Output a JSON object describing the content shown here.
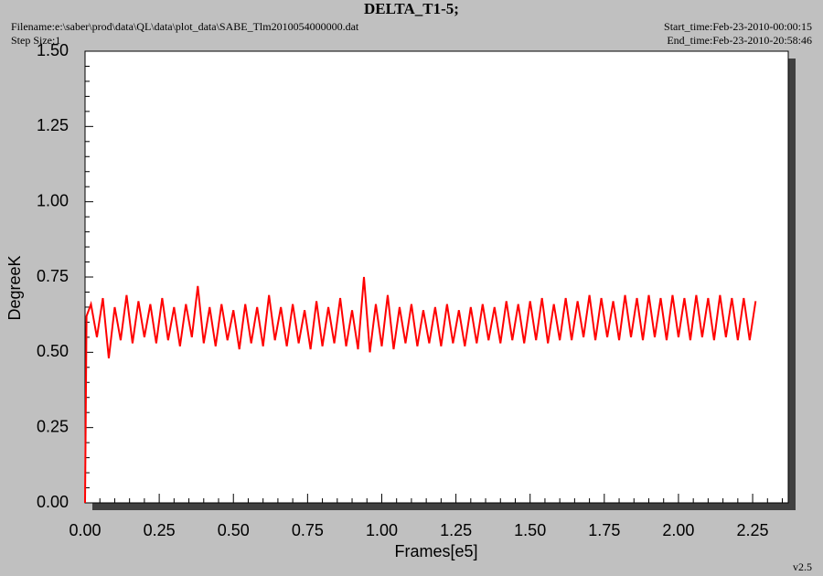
{
  "chart_data": {
    "type": "line",
    "title": "DELTA_T1-5;",
    "filename": "Filename:e:\\saber\\prod\\data\\QL\\data\\plot_data\\SABE_Tlm2010054000000.dat",
    "step_size": "Step Size:1",
    "start_time": "Start_time:Feb-23-2010-00:00:15",
    "end_time": "End_time:Feb-23-2010-20:58:46",
    "version": "v2.5",
    "x_label": "Frames[e5]",
    "y_label": "DegreeK",
    "color": "#ff0000",
    "xlim": [
      0,
      2.37
    ],
    "ylim": [
      0,
      1.5
    ],
    "xticks": [
      {
        "value": 0,
        "label": "0.00"
      },
      {
        "value": 0.25,
        "label": "0.25"
      },
      {
        "value": 0.5,
        "label": "0.50"
      },
      {
        "value": 0.75,
        "label": "0.75"
      },
      {
        "value": 1,
        "label": "1.00"
      },
      {
        "value": 1.25,
        "label": "1.25"
      },
      {
        "value": 1.5,
        "label": "1.50"
      },
      {
        "value": 1.75,
        "label": "1.75"
      },
      {
        "value": 2,
        "label": "2.00"
      },
      {
        "value": 2.25,
        "label": "2.25"
      }
    ],
    "yticks": [
      {
        "value": 0,
        "label": "0.00"
      },
      {
        "value": 0.25,
        "label": "0.25"
      },
      {
        "value": 0.5,
        "label": "0.50"
      },
      {
        "value": 0.75,
        "label": "0.75"
      },
      {
        "value": 1,
        "label": "1.00"
      },
      {
        "value": 1.25,
        "label": "1.25"
      },
      {
        "value": 1.5,
        "label": "1.50"
      }
    ],
    "x": [
      0,
      0.005,
      0.02,
      0.04,
      0.06,
      0.08,
      0.1,
      0.12,
      0.14,
      0.16,
      0.18,
      0.2,
      0.22,
      0.24,
      0.26,
      0.28,
      0.3,
      0.32,
      0.34,
      0.36,
      0.38,
      0.4,
      0.42,
      0.44,
      0.46,
      0.48,
      0.5,
      0.52,
      0.54,
      0.56,
      0.58,
      0.6,
      0.62,
      0.64,
      0.66,
      0.68,
      0.7,
      0.72,
      0.74,
      0.76,
      0.78,
      0.8,
      0.82,
      0.84,
      0.86,
      0.88,
      0.9,
      0.92,
      0.94,
      0.96,
      0.98,
      1.0,
      1.02,
      1.04,
      1.06,
      1.08,
      1.1,
      1.12,
      1.14,
      1.16,
      1.18,
      1.2,
      1.22,
      1.24,
      1.26,
      1.28,
      1.3,
      1.32,
      1.34,
      1.36,
      1.38,
      1.4,
      1.42,
      1.44,
      1.46,
      1.48,
      1.5,
      1.52,
      1.54,
      1.56,
      1.58,
      1.6,
      1.62,
      1.64,
      1.66,
      1.68,
      1.7,
      1.72,
      1.74,
      1.76,
      1.78,
      1.8,
      1.82,
      1.84,
      1.86,
      1.88,
      1.9,
      1.92,
      1.94,
      1.96,
      1.98,
      2.0,
      2.02,
      2.04,
      2.06,
      2.08,
      2.1,
      2.12,
      2.14,
      2.16,
      2.18,
      2.2,
      2.22,
      2.24,
      2.26
    ],
    "values": [
      0,
      0.62,
      0.66,
      0.55,
      0.68,
      0.48,
      0.65,
      0.54,
      0.69,
      0.53,
      0.67,
      0.55,
      0.66,
      0.53,
      0.68,
      0.54,
      0.65,
      0.52,
      0.66,
      0.55,
      0.72,
      0.53,
      0.65,
      0.52,
      0.66,
      0.54,
      0.64,
      0.51,
      0.66,
      0.53,
      0.65,
      0.52,
      0.69,
      0.54,
      0.65,
      0.52,
      0.66,
      0.53,
      0.64,
      0.51,
      0.67,
      0.52,
      0.65,
      0.53,
      0.68,
      0.52,
      0.64,
      0.51,
      0.75,
      0.5,
      0.66,
      0.52,
      0.69,
      0.51,
      0.65,
      0.53,
      0.66,
      0.52,
      0.64,
      0.53,
      0.65,
      0.52,
      0.66,
      0.53,
      0.64,
      0.52,
      0.65,
      0.53,
      0.66,
      0.54,
      0.65,
      0.53,
      0.67,
      0.54,
      0.66,
      0.53,
      0.67,
      0.54,
      0.68,
      0.53,
      0.66,
      0.54,
      0.68,
      0.54,
      0.67,
      0.55,
      0.69,
      0.54,
      0.68,
      0.55,
      0.67,
      0.54,
      0.69,
      0.55,
      0.68,
      0.54,
      0.69,
      0.55,
      0.68,
      0.54,
      0.69,
      0.55,
      0.68,
      0.54,
      0.69,
      0.55,
      0.68,
      0.54,
      0.69,
      0.55,
      0.68,
      0.54,
      0.68,
      0.54,
      0.67
    ]
  }
}
